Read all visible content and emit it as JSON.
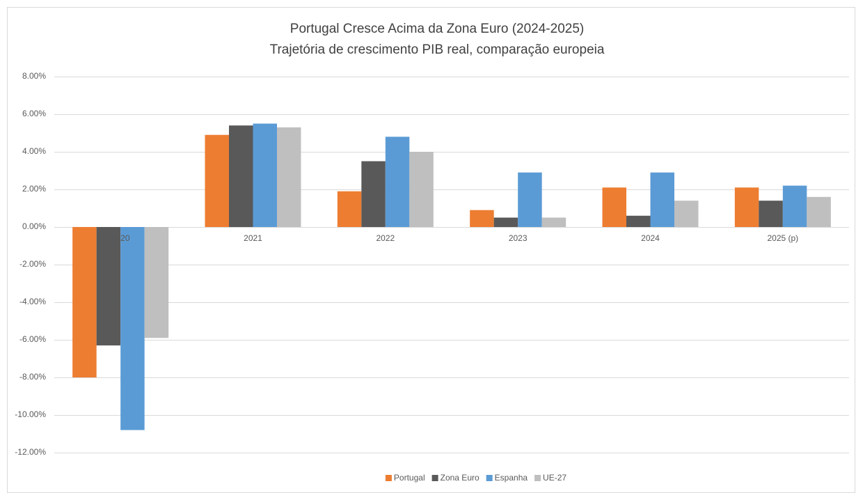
{
  "chart_data": {
    "type": "bar",
    "title": "Portugal Cresce Acima da Zona Euro (2024-2025)",
    "subtitle": "Trajetória de crescimento PIB real, comparação europeia",
    "categories": [
      "2020",
      "2021",
      "2022",
      "2023",
      "2024",
      "2025 (p)"
    ],
    "series": [
      {
        "name": "Portugal",
        "color": "#ED7D31",
        "values": [
          -8.0,
          4.9,
          1.9,
          0.9,
          2.1,
          2.1
        ]
      },
      {
        "name": "Zona Euro",
        "color": "#595959",
        "values": [
          -6.3,
          5.4,
          3.5,
          0.5,
          0.6,
          1.4
        ]
      },
      {
        "name": "Espanha",
        "color": "#5B9BD5",
        "values": [
          -10.8,
          5.5,
          4.8,
          2.9,
          2.9,
          2.2
        ]
      },
      {
        "name": "UE-27",
        "color": "#BFBFBF",
        "values": [
          -5.9,
          5.3,
          4.0,
          0.5,
          1.4,
          1.6
        ]
      }
    ],
    "ylim": [
      -12,
      8
    ],
    "yticks": [
      {
        "value": -12,
        "label": "-12.00%"
      },
      {
        "value": -10,
        "label": "-10.00%"
      },
      {
        "value": -8,
        "label": "-8.00%"
      },
      {
        "value": -6,
        "label": "-6.00%"
      },
      {
        "value": -4,
        "label": "-4.00%"
      },
      {
        "value": -2,
        "label": "-2.00%"
      },
      {
        "value": 0,
        "label": "0.00%"
      },
      {
        "value": 2,
        "label": "2.00%"
      },
      {
        "value": 4,
        "label": "4.00%"
      },
      {
        "value": 6,
        "label": "6.00%"
      },
      {
        "value": 8,
        "label": "8.00%"
      }
    ],
    "grid": true,
    "legend": "bottom"
  }
}
